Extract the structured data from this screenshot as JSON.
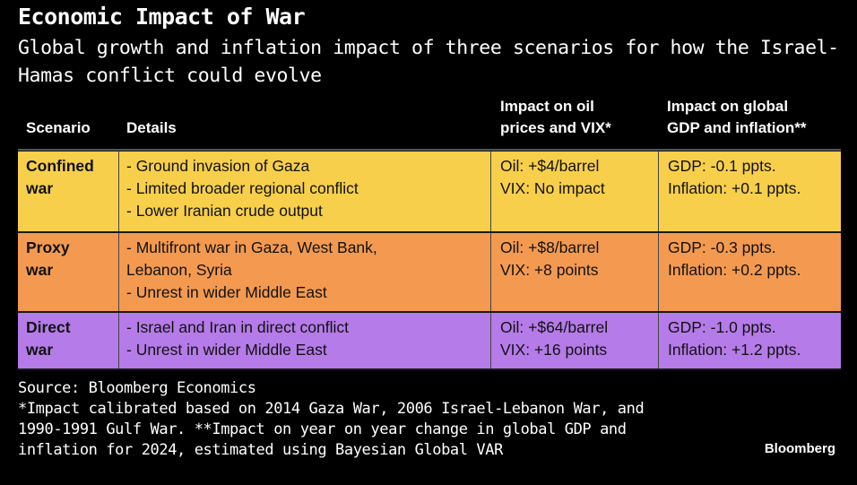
{
  "title": "Economic Impact of War",
  "subtitle_lines": [
    "Global growth and inflation impact of three scenarios for how the Israel-",
    "Hamas conflict could evolve"
  ],
  "chart_data": {
    "type": "table",
    "columns": {
      "scenario": "Scenario",
      "details": "Details",
      "oil": [
        "Impact on oil",
        "prices and VIX*"
      ],
      "gdp": [
        "Impact on global",
        "GDP and inflation**"
      ]
    },
    "rows": [
      {
        "color": "#f7cf4a",
        "scenario": [
          "Confined",
          "war"
        ],
        "details": [
          "- Ground invasion of Gaza",
          "- Limited broader regional conflict",
          "- Lower Iranian crude output"
        ],
        "oil": [
          "Oil: +$4/barrel",
          "VIX: No impact"
        ],
        "gdp": [
          "GDP: -0.1 ppts.",
          "Inflation: +0.1 ppts."
        ]
      },
      {
        "color": "#f39a50",
        "scenario": [
          "Proxy",
          "war"
        ],
        "details": [
          "- Multifront war in Gaza, West Bank,",
          "Lebanon, Syria",
          "- Unrest in wider Middle East"
        ],
        "oil": [
          "Oil: +$8/barrel",
          "VIX: +8 points"
        ],
        "gdp": [
          "GDP: -0.3 ppts.",
          "Inflation: +0.2 ppts."
        ]
      },
      {
        "color": "#b57be8",
        "scenario": [
          "Direct",
          "war"
        ],
        "details": [
          "- Israel and Iran in direct conflict",
          "- Unrest in wider Middle East"
        ],
        "oil": [
          "Oil: +$64/barrel",
          "VIX: +16 points"
        ],
        "gdp": [
          "GDP: -1.0 ppts.",
          "Inflation: +1.2 ppts."
        ]
      }
    ]
  },
  "notes": [
    "Source: Bloomberg Economics",
    "*Impact calibrated based on 2014 Gaza War, 2006 Israel-Lebanon War, and",
    "1990-1991 Gulf War. **Impact on year on year change in global GDP and",
    "inflation for 2024, estimated using Bayesian Global VAR"
  ],
  "brand": "Bloomberg"
}
